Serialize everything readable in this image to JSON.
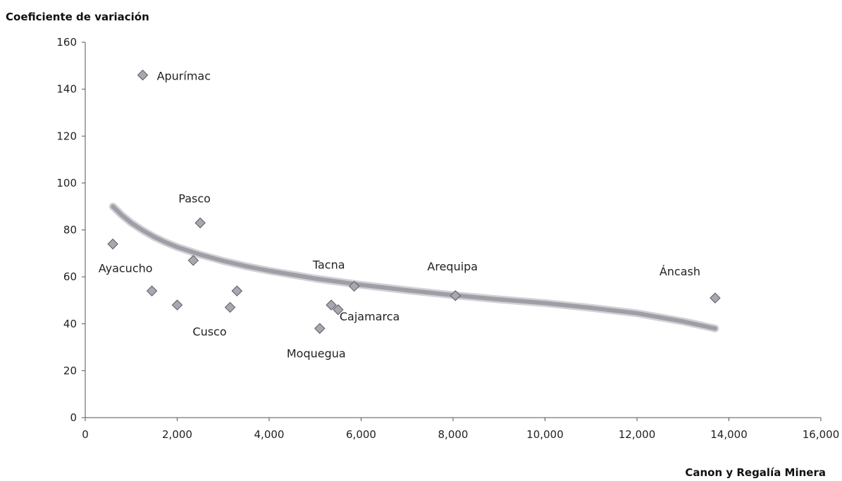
{
  "chart_data": {
    "type": "scatter",
    "title": "",
    "ylabel": "Coeficiente de variación",
    "xlabel": "Canon y Regalía Minera",
    "xlim": [
      0,
      16000
    ],
    "ylim": [
      0,
      160
    ],
    "xticks": [
      0,
      2000,
      4000,
      6000,
      8000,
      10000,
      12000,
      14000,
      16000
    ],
    "xtick_labels": [
      "0",
      "2,000",
      "4,000",
      "6,000",
      "8,000",
      "10,000",
      "12,000",
      "14,000",
      "16,000"
    ],
    "yticks": [
      0,
      20,
      40,
      60,
      80,
      100,
      120,
      140,
      160
    ],
    "ytick_labels": [
      "0",
      "20",
      "40",
      "60",
      "80",
      "100",
      "120",
      "140",
      "160"
    ],
    "grid": false,
    "marker": "diamond",
    "marker_color": "#a8a8b0",
    "points": [
      {
        "x": 1250,
        "y": 146,
        "label": "Apurímac"
      },
      {
        "x": 2500,
        "y": 83,
        "label": "Pasco"
      },
      {
        "x": 600,
        "y": 74,
        "label": "Ayacucho"
      },
      {
        "x": 2350,
        "y": 67,
        "label": ""
      },
      {
        "x": 1450,
        "y": 54,
        "label": ""
      },
      {
        "x": 2000,
        "y": 48,
        "label": ""
      },
      {
        "x": 3150,
        "y": 47,
        "label": "Cusco"
      },
      {
        "x": 3300,
        "y": 54,
        "label": ""
      },
      {
        "x": 5100,
        "y": 38,
        "label": "Moquegua"
      },
      {
        "x": 5350,
        "y": 48,
        "label": ""
      },
      {
        "x": 5500,
        "y": 46,
        "label": "Cajamarca"
      },
      {
        "x": 5850,
        "y": 56,
        "label": "Tacna"
      },
      {
        "x": 8050,
        "y": 52,
        "label": "Arequipa"
      },
      {
        "x": 13700,
        "y": 51,
        "label": "Áncash"
      }
    ],
    "trendline": {
      "x": [
        600,
        800,
        1000,
        1250,
        1500,
        1750,
        2000,
        2500,
        3000,
        3500,
        4000,
        5000,
        6000,
        7000,
        8000,
        9000,
        10000,
        11000,
        12000,
        13000,
        13700
      ],
      "y": [
        90,
        86.2,
        83.0,
        79.8,
        77.0,
        74.7,
        72.7,
        69.5,
        66.8,
        64.5,
        62.6,
        59.3,
        56.6,
        54.3,
        52.2,
        50.4,
        48.8,
        46.8,
        44.5,
        41.0,
        38
      ],
      "color": "#9e9ea6"
    }
  }
}
